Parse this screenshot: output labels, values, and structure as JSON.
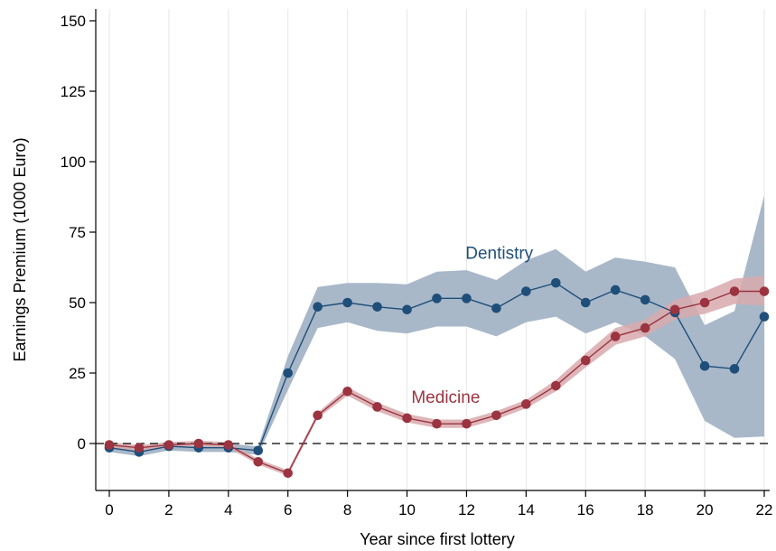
{
  "chart_data": {
    "type": "line",
    "xlabel": "Year since first lottery",
    "ylabel": "Earnings Premium (1000 Euro)",
    "xlim": [
      0,
      22
    ],
    "ylim": [
      -15,
      150
    ],
    "xticks": [
      0,
      2,
      4,
      6,
      8,
      10,
      12,
      14,
      16,
      18,
      20,
      22
    ],
    "yticks": [
      0,
      25,
      50,
      75,
      100,
      125,
      150
    ],
    "x": [
      0,
      1,
      2,
      3,
      4,
      5,
      6,
      7,
      8,
      9,
      10,
      11,
      12,
      13,
      14,
      15,
      16,
      17,
      18,
      19,
      20,
      21,
      22
    ],
    "reference_line": {
      "y": 0,
      "style": "dashed"
    },
    "series": [
      {
        "name": "Dentistry",
        "color": "#1f4e79",
        "band_color": "#a3b4c6",
        "values": [
          -1.5,
          -3,
          -1,
          -1.5,
          -1.5,
          -2.5,
          25,
          48.5,
          50,
          48.5,
          47.5,
          51.5,
          51.5,
          48,
          54,
          57,
          50,
          54.5,
          51,
          46.5,
          27.5,
          26.5,
          45
        ],
        "ci_low": [
          -3,
          -4.5,
          -2.5,
          -3,
          -3,
          -4,
          19,
          41,
          43,
          40,
          39,
          41.5,
          41.5,
          38,
          43,
          45,
          39,
          43,
          38,
          30,
          8,
          2,
          2.5
        ],
        "ci_high": [
          0,
          -1.5,
          0.5,
          0,
          0,
          -1,
          31,
          55.5,
          57,
          57,
          56.5,
          61,
          61.5,
          58,
          65,
          69,
          61,
          66,
          64.5,
          62.5,
          42,
          47,
          88
        ]
      },
      {
        "name": "Medicine",
        "color": "#9b3440",
        "band_color": "#d8a9ad",
        "values": [
          -0.5,
          -1.5,
          -0.5,
          0,
          -0.5,
          -6.5,
          -10.5,
          10,
          18.5,
          13,
          9,
          7,
          7,
          10,
          14,
          20.5,
          29.5,
          38,
          41,
          47.5,
          50,
          54,
          54
        ],
        "ci_low": [
          -1.5,
          -2.5,
          -1.5,
          -1,
          -1.5,
          -7.5,
          -11.5,
          9,
          17,
          11.5,
          7.5,
          5.5,
          5.5,
          8.5,
          12.5,
          18.5,
          27,
          35,
          38,
          44,
          46,
          49.5,
          49
        ],
        "ci_high": [
          0.5,
          -0.5,
          0.5,
          1,
          0.5,
          -5.5,
          -9.5,
          11,
          20,
          14.5,
          10.5,
          8.5,
          8.5,
          11.5,
          15.5,
          22.5,
          32,
          41,
          44,
          51,
          54,
          58.5,
          59.5
        ]
      }
    ]
  }
}
